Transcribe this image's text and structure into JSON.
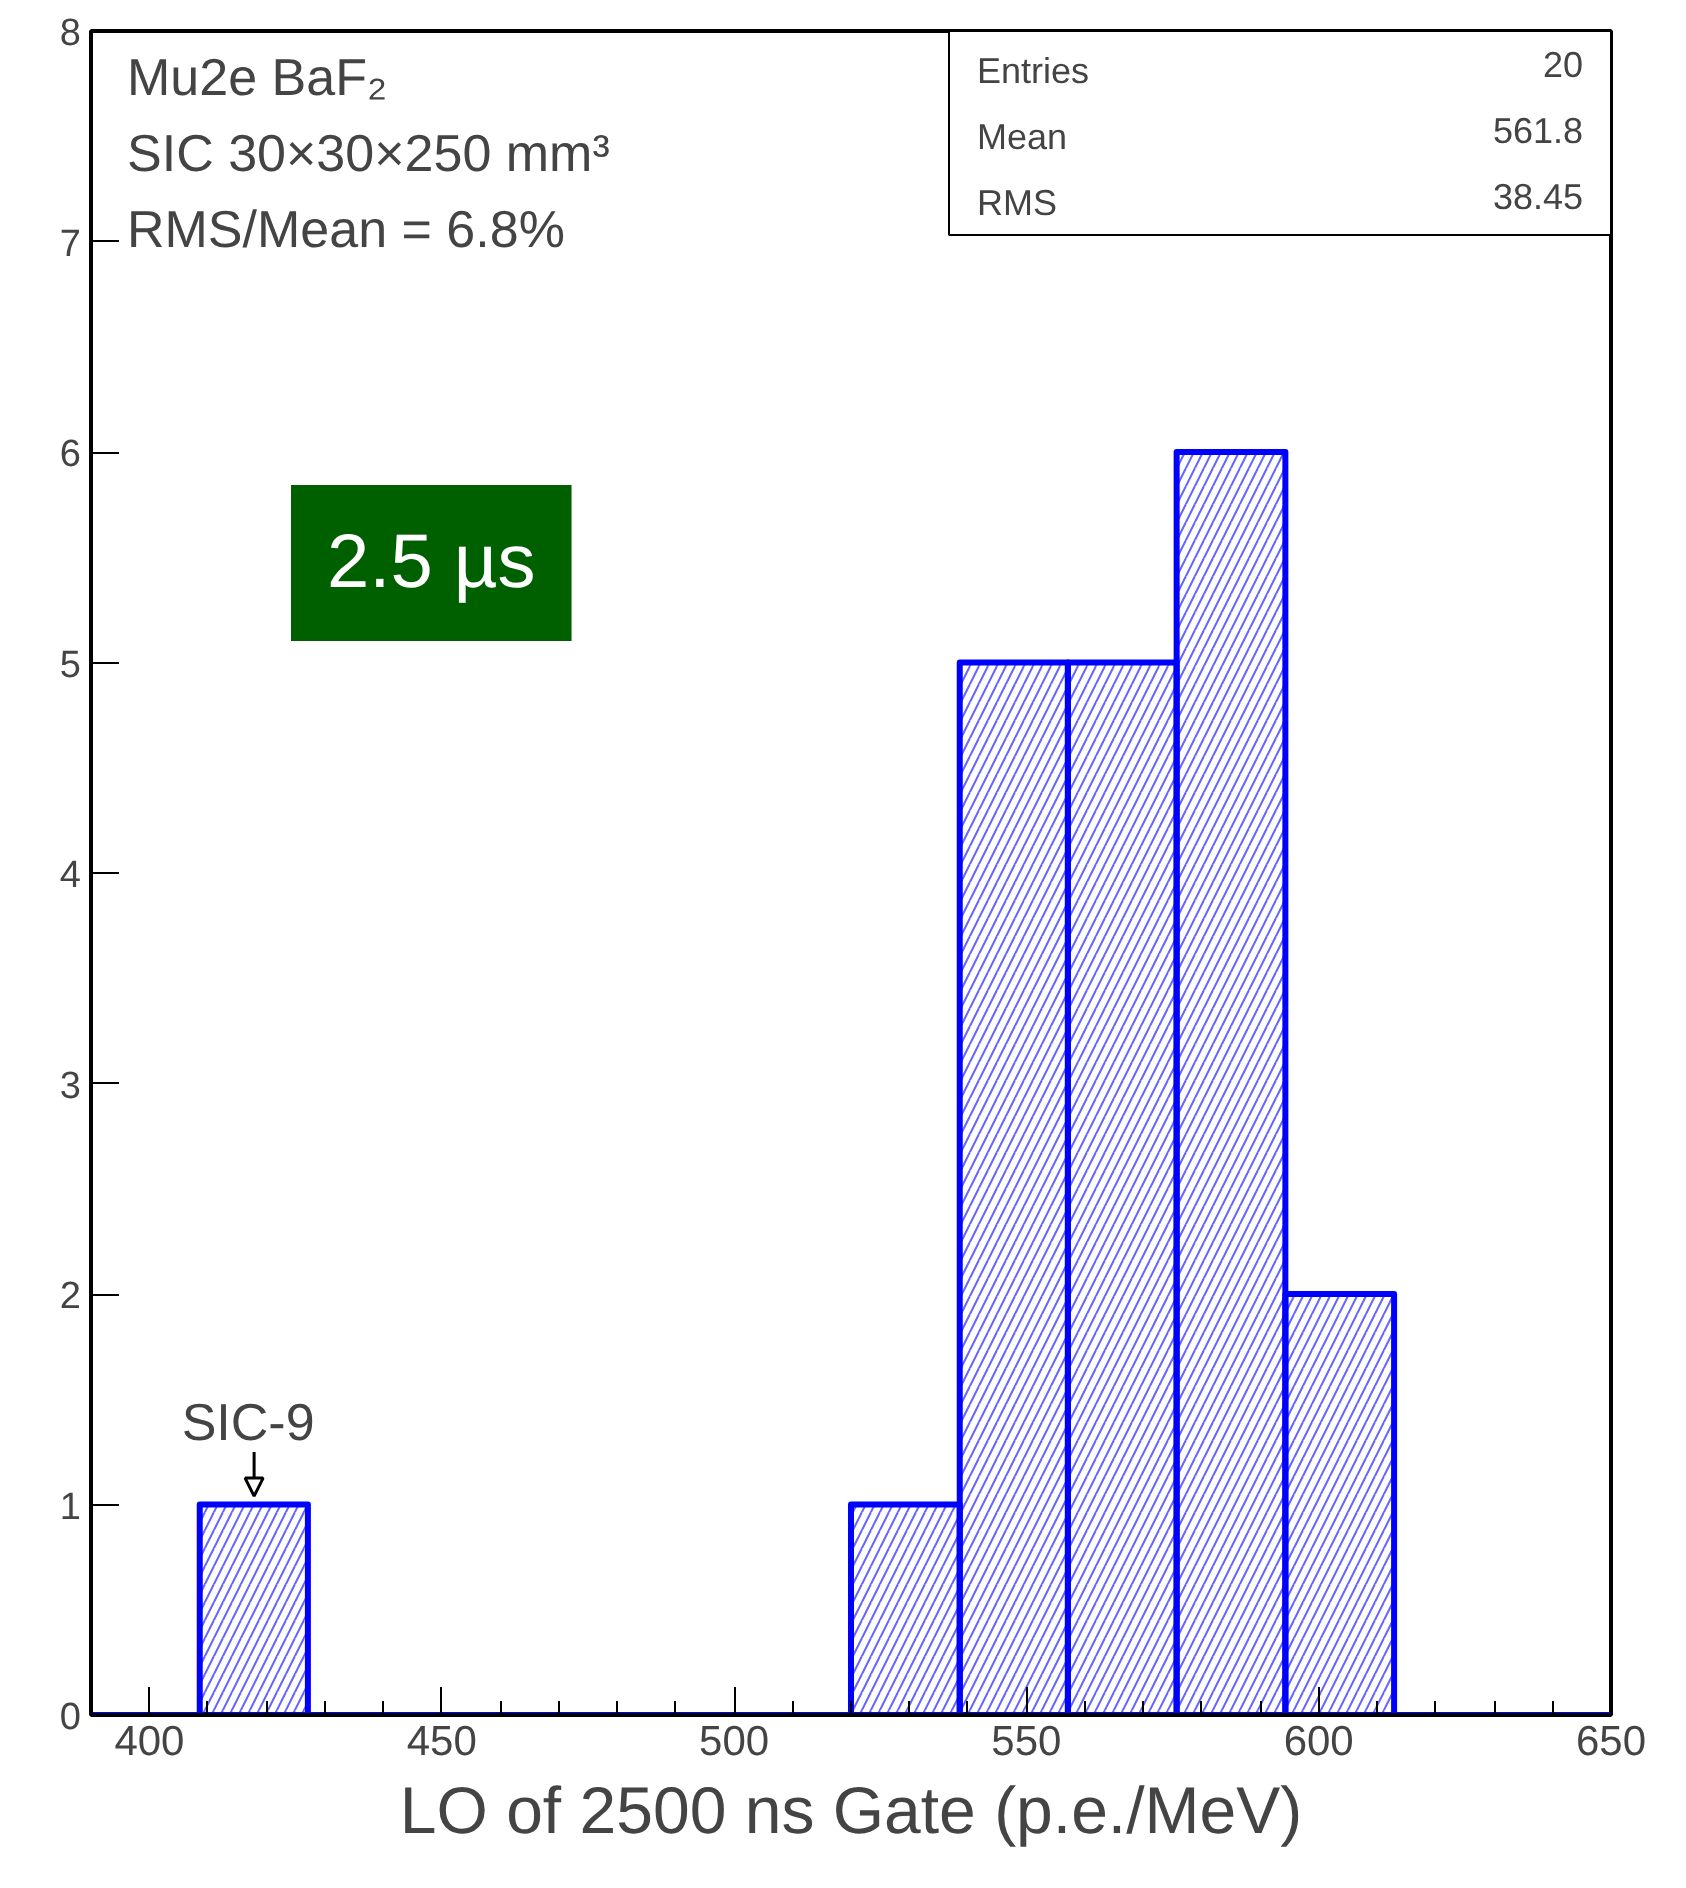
{
  "chart_data": {
    "type": "histogram",
    "title": "Mu2e BaF₂",
    "subtitle": "SIC  30×30×250 mm³",
    "xlabel": "LO of 2500 ns Gate (p.e./MeV)",
    "bins": [
      390,
      408.6,
      427.1,
      520,
      538.6,
      557.1,
      575.7,
      594.3,
      612.9,
      650
    ],
    "values": [
      0,
      1,
      0,
      1,
      5,
      5,
      6,
      2,
      0
    ],
    "color": "#0000ff",
    "xlim": [
      390,
      650
    ],
    "ylim": [
      0,
      8
    ],
    "xticks": [
      400,
      450,
      500,
      550,
      600,
      650
    ],
    "yticks": [
      0,
      1,
      2,
      3,
      4,
      5,
      6,
      7,
      8
    ],
    "grid": false,
    "annotations": [
      "RMS/Mean = 6.8%",
      "Entries",
      "20",
      "Mean",
      "561.8",
      "RMS",
      "38.45",
      "2.5 µs",
      {
        "text": "SIC-9",
        "x": 417.9,
        "y": 1
      }
    ]
  }
}
